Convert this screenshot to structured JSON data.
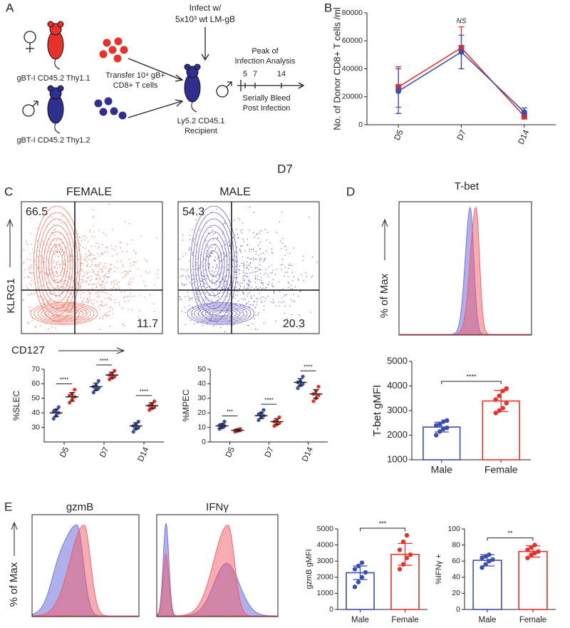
{
  "panel_a": {
    "label": "A",
    "infect": [
      "Infect w/",
      "5x10³ wt LM-gB"
    ],
    "peak": [
      "Peak of",
      "Infection Analysis"
    ],
    "days": [
      "5",
      "7",
      "14"
    ],
    "transfer": [
      "Transfer 10⁴ gB+",
      "CD8+ T cells"
    ],
    "donor_female": "gBT-I CD45.2 Thy1.1",
    "donor_male": "gBT-I CD45.2 Thy1.2",
    "recipient": [
      "Ly5.2 CD45.1",
      "Recipient"
    ],
    "bleed": [
      "Serially Bleed",
      "Post Infection"
    ]
  },
  "panel_c_flow": {
    "label": "C",
    "title": "D7",
    "ylabel": "KLRG1",
    "xlabel": "CD127",
    "plots": [
      {
        "title": "FEMALE",
        "klrg1_high": 66.5,
        "cd127_high": 11.7
      },
      {
        "title": "MALE",
        "klrg1_high": 54.3,
        "cd127_high": 20.3
      }
    ]
  },
  "panel_d_hist": {
    "label": "D",
    "title": "T-bet",
    "ylabel": "% of Max"
  },
  "panel_e_hist": {
    "label": "E",
    "titles": [
      "gzmB",
      "IFNγ"
    ],
    "ylabel": "% of Max"
  },
  "chart_data": [
    {
      "type": "line",
      "panel": "B",
      "ylabel": "No. of Donor CD8+ T cells /ml",
      "annotation": "NS",
      "categories": [
        "D5",
        "D7",
        "D14"
      ],
      "ylim": [
        0,
        80000
      ],
      "yticks": [
        0,
        20000,
        40000,
        60000,
        80000
      ],
      "series": [
        {
          "color": "#e8312a",
          "marker": "square",
          "values": [
            27000,
            55000,
            6000
          ],
          "errors": [
            14500,
            15000,
            2000
          ]
        },
        {
          "color": "#3a4fb0",
          "marker": "circle",
          "values": [
            24000,
            52000,
            9000
          ],
          "errors": [
            16000,
            12000,
            3000
          ]
        }
      ]
    },
    {
      "type": "dot",
      "ylabel": "%SLEC",
      "categories": [
        "D5",
        "D7",
        "D14"
      ],
      "ylim": [
        20,
        70
      ],
      "yticks": [
        30,
        40,
        50,
        60,
        70
      ],
      "significance": [
        "****",
        "****",
        "****"
      ],
      "series": [
        {
          "color": "#3a4fb0",
          "values": [
            40,
            58,
            31
          ],
          "errors": [
            2.5,
            2.5,
            2.2
          ],
          "points": [
            [
              36,
              38,
              40,
              41,
              42,
              44
            ],
            [
              54,
              56,
              57,
              58,
              59,
              62
            ],
            [
              27,
              29,
              30,
              31,
              32,
              34
            ]
          ]
        },
        {
          "color": "#e8312a",
          "values": [
            51,
            66,
            45
          ],
          "errors": [
            3,
            2,
            2
          ],
          "points": [
            [
              47,
              49,
              51,
              52,
              53,
              56
            ],
            [
              63,
              64,
              65,
              66,
              67,
              69
            ],
            [
              42,
              43,
              44,
              45,
              46,
              48
            ]
          ]
        }
      ]
    },
    {
      "type": "dot",
      "ylabel": "%MPEC",
      "categories": [
        "D5",
        "D7",
        "D14"
      ],
      "ylim": [
        0,
        50
      ],
      "yticks": [
        0,
        10,
        20,
        30,
        40,
        50
      ],
      "significance": [
        "***",
        "****",
        "****"
      ],
      "series": [
        {
          "color": "#3a4fb0",
          "values": [
            11,
            18,
            41
          ],
          "errors": [
            1.5,
            2,
            2.5
          ],
          "points": [
            [
              9,
              10,
              11,
              11.5,
              12,
              14
            ],
            [
              15,
              17,
              18,
              19,
              20,
              22
            ],
            [
              37,
              39,
              40,
              41,
              42,
              45
            ]
          ]
        },
        {
          "color": "#e8312a",
          "values": [
            8,
            14,
            33
          ],
          "errors": [
            0.7,
            2,
            3
          ],
          "points": [
            [
              7,
              7.5,
              8,
              8,
              8.5,
              9
            ],
            [
              11,
              12,
              13,
              14,
              15,
              17
            ],
            [
              28,
              30,
              32,
              33,
              35,
              38
            ]
          ]
        }
      ]
    },
    {
      "type": "bar",
      "ylabel": "T-bet gMFI",
      "categories": [
        "Male",
        "Female"
      ],
      "colors": [
        "#3a4fb0",
        "#e8312a"
      ],
      "ylim": [
        1000,
        5000
      ],
      "yticks": [
        1000,
        2000,
        3000,
        4000,
        5000
      ],
      "significance": "****",
      "values": [
        2330,
        3390
      ],
      "errors": [
        200,
        430
      ],
      "points": [
        [
          2000,
          2150,
          2250,
          2300,
          2400,
          2450,
          2550,
          2600
        ],
        [
          2900,
          3000,
          3100,
          3300,
          3450,
          3600,
          3800,
          3900
        ]
      ]
    },
    {
      "type": "bar",
      "ylabel": "gzmB gMFI",
      "categories": [
        "Male",
        "Female"
      ],
      "colors": [
        "#3a4fb0",
        "#e8312a"
      ],
      "ylim": [
        0,
        5000
      ],
      "yticks": [
        0,
        1000,
        2000,
        3000,
        4000,
        5000
      ],
      "significance": "***",
      "values": [
        2280,
        3420
      ],
      "errors": [
        420,
        680
      ],
      "points": [
        [
          1400,
          1700,
          2000,
          2300,
          2500,
          2700,
          2900
        ],
        [
          2500,
          2800,
          3200,
          3400,
          3700,
          4200,
          4600
        ]
      ]
    },
    {
      "type": "bar",
      "ylabel": "%IFNγ +",
      "categories": [
        "Male",
        "Female"
      ],
      "colors": [
        "#3a4fb0",
        "#e8312a"
      ],
      "ylim": [
        0,
        100
      ],
      "yticks": [
        0,
        20,
        40,
        60,
        80,
        100
      ],
      "significance": "**",
      "values": [
        61,
        72
      ],
      "errors": [
        7,
        7
      ],
      "points": [
        [
          52,
          56,
          60,
          62,
          64,
          66,
          68
        ],
        [
          64,
          68,
          70,
          72,
          74,
          77,
          80
        ]
      ]
    }
  ]
}
